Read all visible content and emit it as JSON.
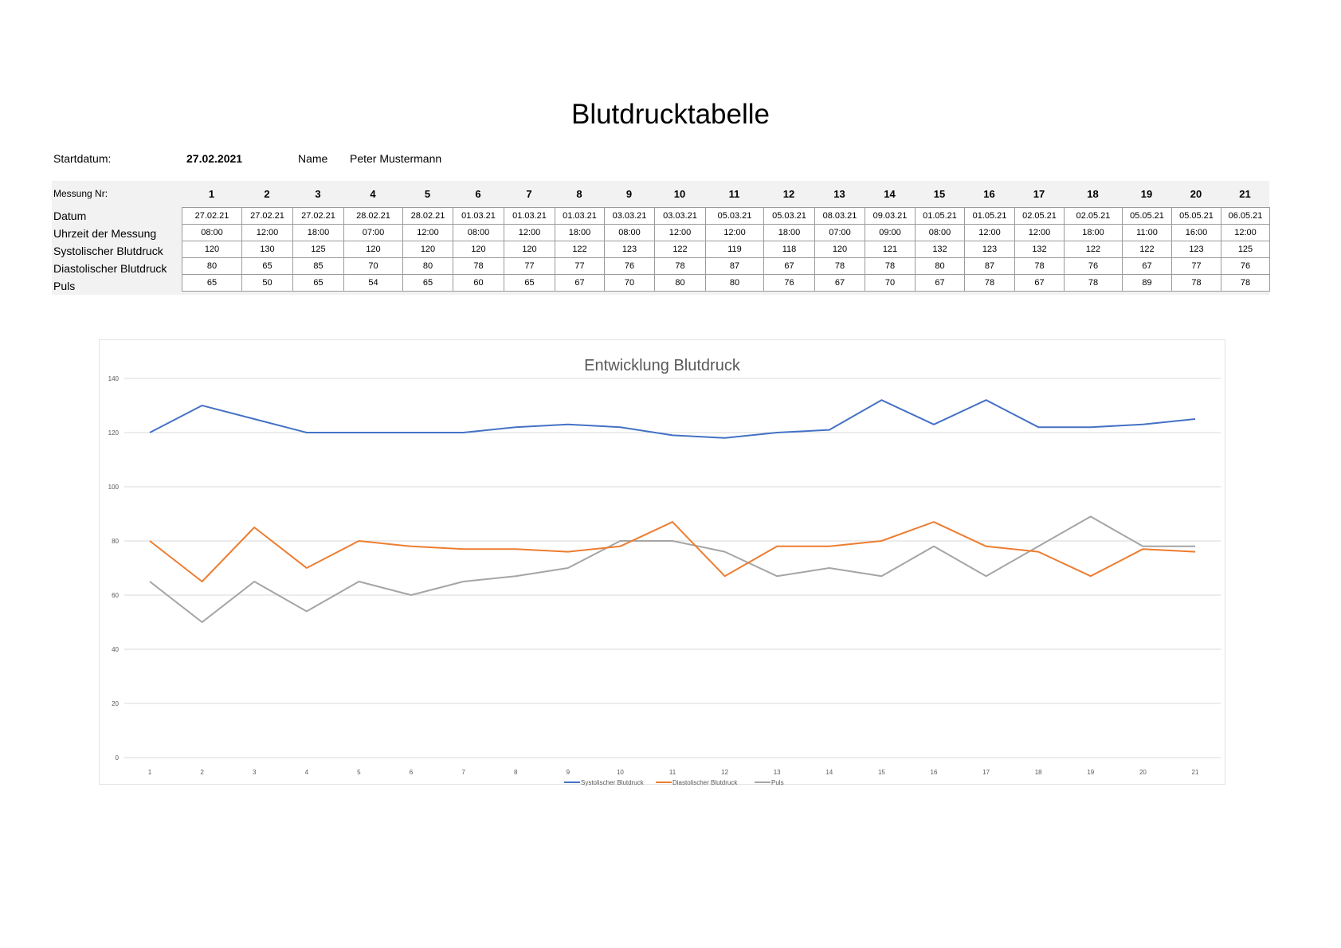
{
  "page": {
    "title": "Blutdrucktabelle",
    "start_label": "Startdatum:",
    "start_value": "27.02.2021",
    "name_label": "Name",
    "name_value": "Peter Mustermann"
  },
  "table": {
    "header_label": "Messung Nr:",
    "row_labels": [
      "Datum",
      "Uhrzeit der Messung",
      "Systolischer Blutdruck",
      "Diastolischer Blutdruck",
      "Puls"
    ],
    "numbers": [
      "1",
      "2",
      "3",
      "4",
      "5",
      "6",
      "7",
      "8",
      "9",
      "10",
      "11",
      "12",
      "13",
      "14",
      "15",
      "16",
      "17",
      "18",
      "19",
      "20",
      "21"
    ],
    "datum": [
      "27.02.21",
      "27.02.21",
      "27.02.21",
      "28.02.21",
      "28.02.21",
      "01.03.21",
      "01.03.21",
      "01.03.21",
      "03.03.21",
      "03.03.21",
      "05.03.21",
      "05.03.21",
      "08.03.21",
      "09.03.21",
      "01.05.21",
      "01.05.21",
      "02.05.21",
      "02.05.21",
      "05.05.21",
      "05.05.21",
      "06.05.21"
    ],
    "uhrzeit": [
      "08:00",
      "12:00",
      "18:00",
      "07:00",
      "12:00",
      "08:00",
      "12:00",
      "18:00",
      "08:00",
      "12:00",
      "12:00",
      "18:00",
      "07:00",
      "09:00",
      "08:00",
      "12:00",
      "12:00",
      "18:00",
      "11:00",
      "16:00",
      "12:00"
    ],
    "systolisch": [
      "120",
      "130",
      "125",
      "120",
      "120",
      "120",
      "120",
      "122",
      "123",
      "122",
      "119",
      "118",
      "120",
      "121",
      "132",
      "123",
      "132",
      "122",
      "122",
      "123",
      "125"
    ],
    "diastolisch": [
      "80",
      "65",
      "85",
      "70",
      "80",
      "78",
      "77",
      "77",
      "76",
      "78",
      "87",
      "67",
      "78",
      "78",
      "80",
      "87",
      "78",
      "76",
      "67",
      "77",
      "76"
    ],
    "puls": [
      "65",
      "50",
      "65",
      "54",
      "65",
      "60",
      "65",
      "67",
      "70",
      "80",
      "80",
      "76",
      "67",
      "70",
      "67",
      "78",
      "67",
      "78",
      "89",
      "78",
      "78"
    ]
  },
  "chart_data": {
    "type": "line",
    "title": "Entwicklung Blutdruck",
    "xlabel": "",
    "ylabel": "",
    "categories": [
      "1",
      "2",
      "3",
      "4",
      "5",
      "6",
      "7",
      "8",
      "9",
      "10",
      "11",
      "12",
      "13",
      "14",
      "15",
      "16",
      "17",
      "18",
      "19",
      "20",
      "21"
    ],
    "series": [
      {
        "name": "Systolischer Blutdruck",
        "color": "#4472c4",
        "values": [
          120,
          130,
          125,
          120,
          120,
          120,
          120,
          122,
          123,
          122,
          119,
          118,
          120,
          121,
          132,
          123,
          132,
          122,
          122,
          123,
          125
        ]
      },
      {
        "name": "Diastolischer Blutdruck",
        "color": "#ed7d31",
        "values": [
          80,
          65,
          85,
          70,
          80,
          78,
          77,
          77,
          76,
          78,
          87,
          67,
          78,
          78,
          80,
          87,
          78,
          76,
          67,
          77,
          76
        ]
      },
      {
        "name": "Puls",
        "color": "#a5a5a5",
        "values": [
          65,
          50,
          65,
          54,
          65,
          60,
          65,
          67,
          70,
          80,
          80,
          76,
          67,
          70,
          67,
          78,
          67,
          78,
          89,
          78,
          78
        ]
      }
    ],
    "ylim": [
      0,
      140
    ],
    "yticks": [
      0,
      20,
      40,
      60,
      80,
      100,
      120,
      140
    ],
    "grid": true,
    "legend_position": "bottom"
  }
}
